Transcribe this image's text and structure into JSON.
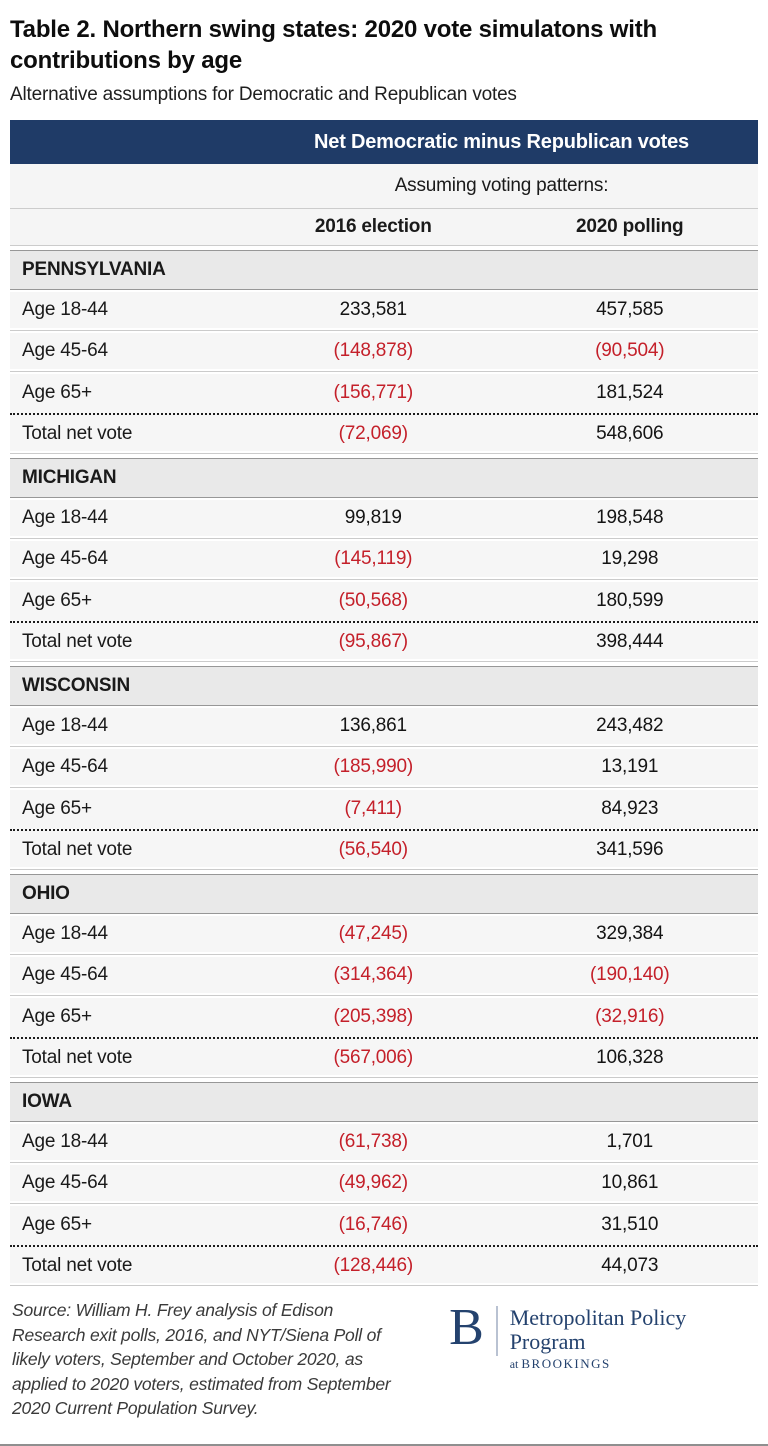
{
  "title": "Table 2. Northern swing states: 2020 vote simulatons with contributions by age",
  "subtitle": "Alternative assumptions for Democratic and Republican votes",
  "table": {
    "span_header": "Net Democratic minus Republican votes",
    "assuming_label": "Assuming voting patterns:",
    "col_2016": "2016 election",
    "col_2020": "2020 polling",
    "sections": [
      {
        "state": "PENNSYLVANIA",
        "rows": [
          {
            "label": "Age 18-44",
            "v2016": "233,581",
            "v2020": "457,585"
          },
          {
            "label": "Age 45-64",
            "v2016": "(148,878)",
            "v2020": "(90,504)"
          },
          {
            "label": "Age 65+",
            "v2016": "(156,771)",
            "v2020": "181,524"
          }
        ],
        "total": {
          "label": "Total net vote",
          "v2016": "(72,069)",
          "v2020": "548,606"
        }
      },
      {
        "state": "MICHIGAN",
        "rows": [
          {
            "label": "Age 18-44",
            "v2016": "99,819",
            "v2020": "198,548"
          },
          {
            "label": "Age 45-64",
            "v2016": "(145,119)",
            "v2020": "19,298"
          },
          {
            "label": "Age 65+",
            "v2016": "(50,568)",
            "v2020": "180,599"
          }
        ],
        "total": {
          "label": "Total net vote",
          "v2016": "(95,867)",
          "v2020": "398,444"
        }
      },
      {
        "state": "WISCONSIN",
        "rows": [
          {
            "label": "Age 18-44",
            "v2016": "136,861",
            "v2020": "243,482"
          },
          {
            "label": "Age 45-64",
            "v2016": "(185,990)",
            "v2020": "13,191"
          },
          {
            "label": "Age 65+",
            "v2016": "(7,411)",
            "v2020": "84,923"
          }
        ],
        "total": {
          "label": "Total net vote",
          "v2016": "(56,540)",
          "v2020": "341,596"
        }
      },
      {
        "state": "OHIO",
        "rows": [
          {
            "label": "Age 18-44",
            "v2016": "(47,245)",
            "v2020": "329,384"
          },
          {
            "label": "Age 45-64",
            "v2016": "(314,364)",
            "v2020": "(190,140)"
          },
          {
            "label": "Age 65+",
            "v2016": "(205,398)",
            "v2020": "(32,916)"
          }
        ],
        "total": {
          "label": "Total net vote",
          "v2016": "(567,006)",
          "v2020": "106,328"
        }
      },
      {
        "state": "IOWA",
        "rows": [
          {
            "label": "Age 18-44",
            "v2016": "(61,738)",
            "v2020": "1,701"
          },
          {
            "label": "Age 45-64",
            "v2016": "(49,962)",
            "v2020": "10,861"
          },
          {
            "label": "Age 65+",
            "v2016": "(16,746)",
            "v2020": "31,510"
          }
        ],
        "total": {
          "label": "Total net vote",
          "v2016": "(128,446)",
          "v2020": "44,073"
        }
      }
    ]
  },
  "footer": {
    "source": "Source: William H. Frey analysis of Edison Research exit polls, 2016, and NYT/Siena Poll of likely voters, September and October 2020, as applied to 2020 voters, estimated from September 2020 Current Population Survey.",
    "logo": {
      "b": "B",
      "program": "Metropolitan Policy Program",
      "at": "at",
      "brookings": "BROOKINGS"
    }
  },
  "colors": {
    "header_navy": "#1f3b67",
    "negative_red": "#c4202a",
    "logo_navy": "#24426e",
    "row_gray": "#f6f6f6",
    "state_header_gray": "#e9e9e9"
  },
  "chart_data": {
    "type": "table",
    "title": "Table 2. Northern swing states: 2020 vote simulatons with contributions by age",
    "subtitle": "Alternative assumptions for Democratic and Republican votes",
    "group_header": "Net Democratic minus Republican votes",
    "columns": [
      "2016 election",
      "2020 polling"
    ],
    "sections": [
      {
        "state": "PENNSYLVANIA",
        "rows": [
          {
            "label": "Age 18-44",
            "values": [
              233581,
              457585
            ]
          },
          {
            "label": "Age 45-64",
            "values": [
              -148878,
              -90504
            ]
          },
          {
            "label": "Age 65+",
            "values": [
              -156771,
              181524
            ]
          },
          {
            "label": "Total net vote",
            "values": [
              -72069,
              548606
            ]
          }
        ]
      },
      {
        "state": "MICHIGAN",
        "rows": [
          {
            "label": "Age 18-44",
            "values": [
              99819,
              198548
            ]
          },
          {
            "label": "Age 45-64",
            "values": [
              -145119,
              19298
            ]
          },
          {
            "label": "Age 65+",
            "values": [
              -50568,
              180599
            ]
          },
          {
            "label": "Total net vote",
            "values": [
              -95867,
              398444
            ]
          }
        ]
      },
      {
        "state": "WISCONSIN",
        "rows": [
          {
            "label": "Age 18-44",
            "values": [
              136861,
              243482
            ]
          },
          {
            "label": "Age 45-64",
            "values": [
              -185990,
              13191
            ]
          },
          {
            "label": "Age 65+",
            "values": [
              -7411,
              84923
            ]
          },
          {
            "label": "Total net vote",
            "values": [
              -56540,
              341596
            ]
          }
        ]
      },
      {
        "state": "OHIO",
        "rows": [
          {
            "label": "Age 18-44",
            "values": [
              -47245,
              329384
            ]
          },
          {
            "label": "Age 45-64",
            "values": [
              -314364,
              -190140
            ]
          },
          {
            "label": "Age 65+",
            "values": [
              -205398,
              -32916
            ]
          },
          {
            "label": "Total net vote",
            "values": [
              -567006,
              106328
            ]
          }
        ]
      },
      {
        "state": "IOWA",
        "rows": [
          {
            "label": "Age 18-44",
            "values": [
              -61738,
              1701
            ]
          },
          {
            "label": "Age 45-64",
            "values": [
              -49962,
              10861
            ]
          },
          {
            "label": "Age 65+",
            "values": [
              -16746,
              31510
            ]
          },
          {
            "label": "Total net vote",
            "values": [
              -128446,
              44073
            ]
          }
        ]
      }
    ],
    "notes": "Values in parentheses (negative) are shown in red; source: Brookings Metropolitan Policy Program figure"
  }
}
